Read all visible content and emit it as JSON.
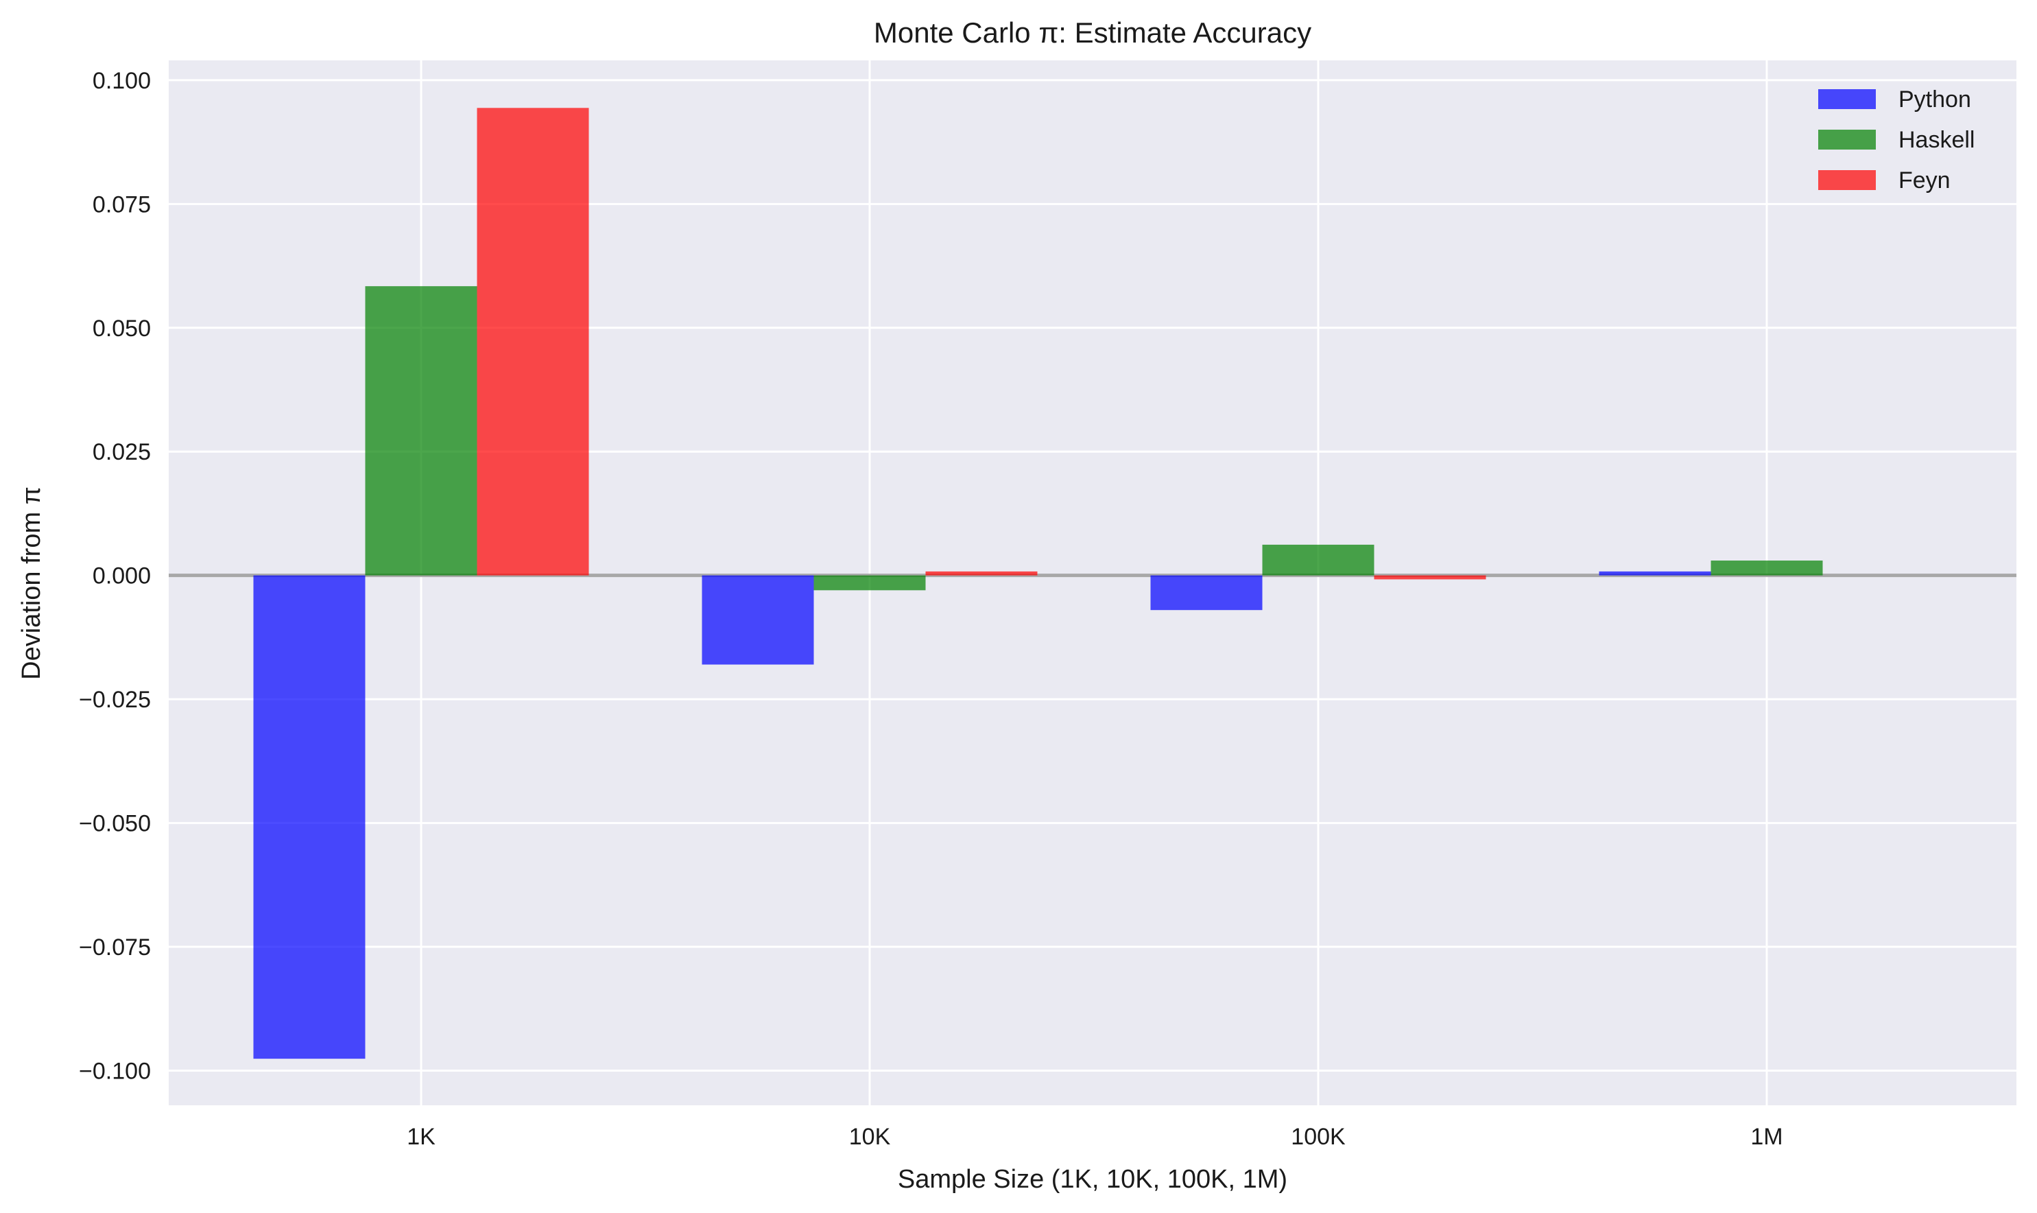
{
  "chart_data": {
    "type": "bar",
    "title": "Monte Carlo π: Estimate Accuracy",
    "xlabel": "Sample Size (1K, 10K, 100K, 1M)",
    "ylabel": "Deviation from π",
    "categories": [
      "1K",
      "10K",
      "100K",
      "1M"
    ],
    "series": [
      {
        "name": "Python",
        "color": "#0000ff",
        "values": [
          -0.0976,
          -0.018,
          -0.007,
          0.0008
        ]
      },
      {
        "name": "Haskell",
        "color": "#008000",
        "values": [
          0.0584,
          -0.003,
          0.0062,
          0.003
        ]
      },
      {
        "name": "Feyn",
        "color": "#ff0000",
        "values": [
          0.0944,
          0.0008,
          -0.0008,
          0.0
        ]
      }
    ],
    "ylim": [
      -0.107,
      0.104
    ],
    "yticks": [
      -0.1,
      -0.075,
      -0.05,
      -0.025,
      0.0,
      0.025,
      0.05,
      0.075,
      0.1
    ],
    "ytick_labels": [
      "−0.100",
      "−0.075",
      "−0.050",
      "−0.025",
      "0.000",
      "0.025",
      "0.050",
      "0.075",
      "0.100"
    ],
    "zero_line": true,
    "grid": true,
    "legend_position": "top-right",
    "background_color": "#eaeaf2",
    "grid_color": "#ffffff",
    "zero_line_color": "#a8a8a8"
  }
}
